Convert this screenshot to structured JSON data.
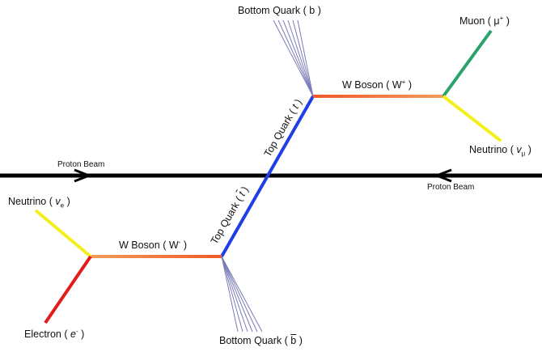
{
  "colors": {
    "beam": "#000000",
    "top_quark": "#1f3ee6",
    "w_boson_start": "#ee5a2c",
    "w_boson_end": "#f49a5c",
    "muon": "#2aa36a",
    "neutrino": "#f4ef1a",
    "electron": "#e31b1b",
    "jet": "#7b7bb8"
  },
  "labels": {
    "bottom_quark_top": {
      "name": "Bottom Quark",
      "open": "(",
      "symbol": "b",
      "close": ")"
    },
    "muon": {
      "name": "Muon",
      "open": "(",
      "symbol": "μ",
      "charge": "+",
      "close": ")"
    },
    "w_boson_plus": {
      "name": "W Boson",
      "open": "(",
      "symbol": "W",
      "charge": "+",
      "close": ")"
    },
    "neutrino_mu": {
      "name": "Neutrino",
      "open": "(",
      "symbol": "v",
      "sub": "μ",
      "close": ")"
    },
    "top_quark": {
      "name": "Top Quark",
      "open": "(",
      "symbol": "t",
      "close": ")"
    },
    "proton_beam_left": "Proton Beam",
    "proton_beam_right": "Proton Beam",
    "top_antiquark": {
      "name": "Top Quark",
      "open": "(",
      "symbol": "t",
      "close": ")"
    },
    "neutrino_e": {
      "name": "Neutrino",
      "open": "(",
      "symbol": "v",
      "sub": "e",
      "close": ")"
    },
    "w_boson_minus": {
      "name": "W Boson",
      "open": "(",
      "symbol": "W",
      "charge": "-",
      "close": ")"
    },
    "electron": {
      "name": "Electron",
      "open": "(",
      "symbol": "e",
      "charge": "-",
      "close": ")"
    },
    "bottom_antiquark": {
      "name": "Bottom Quark",
      "open": "(",
      "symbol": "b",
      "close": ")"
    }
  }
}
